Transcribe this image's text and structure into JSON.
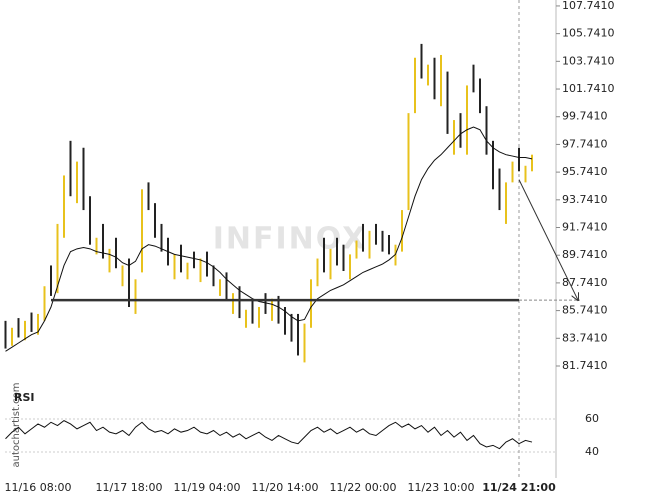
{
  "chart_data": [
    {
      "type": "ohlc",
      "watermark": "INFINOX",
      "source": "autochartist.com",
      "categories": [
        null,
        null,
        null,
        null,
        null,
        "11/16 08:00",
        null,
        null,
        null,
        null,
        null,
        null,
        null,
        null,
        null,
        null,
        null,
        null,
        null,
        "11/17 18:00",
        null,
        null,
        null,
        null,
        null,
        null,
        null,
        null,
        null,
        null,
        null,
        "11/19 04:00",
        null,
        null,
        null,
        null,
        null,
        null,
        null,
        null,
        null,
        null,
        null,
        "11/20 14:00",
        null,
        null,
        null,
        null,
        null,
        null,
        null,
        null,
        null,
        null,
        null,
        "11/22 00:00",
        null,
        null,
        null,
        null,
        null,
        null,
        null,
        null,
        null,
        null,
        null,
        "11/23 10:00",
        null,
        null,
        null,
        null,
        null,
        null,
        null,
        null,
        null,
        null,
        null,
        "11/24 21:00",
        null,
        null
      ],
      "open": [
        85.0,
        83.2,
        85.2,
        83.6,
        85.6,
        84.0,
        85.0,
        89.0,
        87.0,
        91.0,
        98.0,
        93.5,
        97.5,
        94.0,
        89.8,
        92.0,
        88.5,
        91.0,
        87.5,
        89.5,
        85.5,
        88.5,
        95.0,
        93.5,
        92.0,
        91.0,
        88.0,
        90.5,
        88.0,
        90.0,
        87.8,
        90.0,
        89.0,
        86.8,
        88.5,
        85.5,
        87.5,
        84.5,
        86.5,
        84.5,
        87.0,
        85.0,
        86.8,
        86.0,
        85.5,
        85.5,
        82.0,
        84.5,
        87.5,
        91.0,
        88.0,
        91.0,
        90.5,
        88.0,
        89.5,
        92.0,
        89.5,
        92.0,
        91.5,
        91.2,
        89.0,
        90.0,
        93.0,
        100.0,
        105.0,
        102.0,
        104.0,
        100.5,
        103.0,
        97.0,
        100.0,
        97.0,
        103.5,
        102.5,
        100.5,
        98.0,
        96.0,
        92.0,
        95.0,
        97.5,
        95.0,
        95.8
      ],
      "close": [
        83.0,
        84.5,
        83.8,
        85.0,
        84.2,
        85.5,
        87.5,
        86.8,
        92.0,
        95.5,
        94.0,
        96.5,
        93.0,
        90.5,
        91.0,
        89.5,
        90.2,
        88.8,
        89.0,
        86.0,
        88.0,
        94.5,
        93.0,
        91.0,
        90.0,
        89.0,
        89.8,
        88.5,
        89.2,
        88.8,
        89.5,
        88.2,
        87.5,
        88.0,
        86.5,
        87.0,
        85.2,
        85.8,
        84.8,
        86.0,
        85.5,
        86.6,
        84.8,
        84.0,
        83.5,
        82.5,
        84.8,
        88.0,
        89.5,
        88.5,
        90.2,
        89.0,
        88.6,
        89.8,
        90.8,
        90.0,
        91.5,
        90.5,
        90.0,
        89.8,
        90.5,
        93.0,
        100.0,
        104.0,
        102.5,
        103.5,
        101.0,
        104.2,
        98.5,
        99.5,
        97.5,
        102.0,
        101.5,
        100.0,
        97.0,
        94.5,
        93.0,
        95.0,
        96.5,
        95.8,
        96.2,
        97.0
      ],
      "ma": [
        82.8,
        83.1,
        83.4,
        83.7,
        84.0,
        84.2,
        85.0,
        86.0,
        87.5,
        89.0,
        90.0,
        90.2,
        90.3,
        90.2,
        90.0,
        89.9,
        89.8,
        89.6,
        89.2,
        89.0,
        89.3,
        90.2,
        90.5,
        90.4,
        90.2,
        90.0,
        89.8,
        89.7,
        89.6,
        89.5,
        89.4,
        89.2,
        88.9,
        88.5,
        88.0,
        87.6,
        87.2,
        86.9,
        86.6,
        86.4,
        86.3,
        86.2,
        86.0,
        85.7,
        85.3,
        85.0,
        85.1,
        86.0,
        86.6,
        86.9,
        87.2,
        87.4,
        87.6,
        87.9,
        88.2,
        88.5,
        88.7,
        88.9,
        89.1,
        89.4,
        89.8,
        91.0,
        92.5,
        94.0,
        95.2,
        96.0,
        96.6,
        97.0,
        97.5,
        98.0,
        98.5,
        98.8,
        99.0,
        98.8,
        98.0,
        97.5,
        97.2,
        97.0,
        96.9,
        96.8,
        96.8,
        96.7
      ],
      "support": 86.5,
      "arrow_start": 95.2,
      "up_color": "#e8c21c",
      "down_color": "#222222",
      "ma_color": "#111111",
      "support_color": "#333333",
      "ylim": [
        81.09,
        108.17
      ],
      "yticks": [
        {
          "value": 81.741,
          "label": "81.7410"
        },
        {
          "value": 83.741,
          "label": "83.7410"
        },
        {
          "value": 85.741,
          "label": "85.7410"
        },
        {
          "value": 87.741,
          "label": "87.7410"
        },
        {
          "value": 89.741,
          "label": "89.7410"
        },
        {
          "value": 91.741,
          "label": "91.7410"
        },
        {
          "value": 93.741,
          "label": "93.7410"
        },
        {
          "value": 95.741,
          "label": "95.7410"
        },
        {
          "value": 97.741,
          "label": "97.7410"
        },
        {
          "value": 99.741,
          "label": "99.7410"
        },
        {
          "value": 101.741,
          "label": "101.7410"
        },
        {
          "value": 103.741,
          "label": "103.7410"
        },
        {
          "value": 105.741,
          "label": "105.7410"
        },
        {
          "value": 107.741,
          "label": "107.7410"
        }
      ]
    },
    {
      "type": "line",
      "title": "RSI",
      "color": "#111111",
      "values": [
        48,
        52,
        55,
        51,
        54,
        57,
        55,
        58,
        56,
        59,
        57,
        54,
        56,
        58,
        53,
        55,
        52,
        51,
        53,
        50,
        55,
        58,
        54,
        52,
        53,
        51,
        54,
        52,
        53,
        55,
        52,
        51,
        53,
        50,
        52,
        49,
        51,
        48,
        50,
        52,
        49,
        47,
        50,
        48,
        46,
        45,
        49,
        53,
        55,
        52,
        54,
        51,
        53,
        55,
        52,
        54,
        51,
        50,
        53,
        56,
        58,
        55,
        57,
        54,
        56,
        52,
        55,
        50,
        53,
        49,
        52,
        47,
        50,
        45,
        43,
        44,
        42,
        46,
        48,
        45,
        47,
        46
      ],
      "ylim": [
        26,
        77.6
      ],
      "yticks": [
        40,
        60
      ]
    }
  ]
}
